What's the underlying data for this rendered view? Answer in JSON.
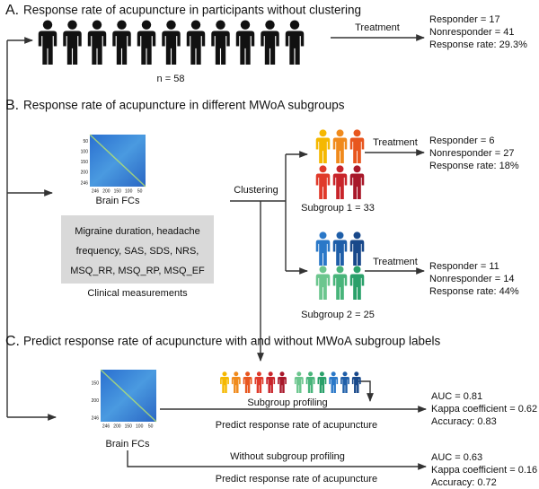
{
  "section_a": {
    "label": "A.",
    "title": "Response rate of acupuncture in participants without clustering",
    "sample": "n = 58",
    "arrow": "Treatment",
    "results": [
      "Responder = 17",
      "Nonresponder = 41",
      "Response rate: 29.3%"
    ]
  },
  "section_b": {
    "label": "B.",
    "title": "Response rate of acupuncture in different MWoA subgroups",
    "matrix": {
      "caption": "Brain FCs",
      "y_ticks": [
        "50",
        "100",
        "150",
        "200",
        "246"
      ],
      "x_ticks": [
        "246",
        "200",
        "150",
        "100",
        "50"
      ]
    },
    "clustering": "Clustering",
    "clinical": {
      "lines": [
        "Migraine duration, headache",
        "frequency, SAS, SDS, NRS,",
        "MSQ_RR, MSQ_RP, MSQ_EF"
      ],
      "caption": "Clinical measurements"
    },
    "subgroups": [
      {
        "label": "Subgroup 1 = 33",
        "arrow": "Treatment",
        "results": [
          "Responder = 6",
          "Nonresponder = 27",
          "Response rate: 18%"
        ]
      },
      {
        "label": "Subgroup 2 = 25",
        "arrow": "Treatment",
        "results": [
          "Responder = 11",
          "Nonresponder = 14",
          "Response rate: 44%"
        ]
      }
    ]
  },
  "section_c": {
    "label": "C.",
    "title": "Predict response rate of acupuncture with and without MWoA subgroup labels",
    "matrix": {
      "caption": "Brain FCs",
      "y_ticks": [
        "150",
        "200",
        "246"
      ],
      "x_ticks": [
        "246",
        "200",
        "150",
        "100",
        "50"
      ]
    },
    "with": {
      "label": "Subgroup profiling",
      "task": "Predict response rate of acupuncture",
      "results": [
        "AUC = 0.81",
        "Kappa coefficient = 0.62",
        "Accuracy: 0.83"
      ]
    },
    "without": {
      "label": "Without subgroup profiling",
      "task": "Predict response rate of acupuncture",
      "results": [
        "AUC = 0.63",
        "Kappa coefficient = 0.16",
        "Accuracy: 0.72"
      ]
    }
  }
}
